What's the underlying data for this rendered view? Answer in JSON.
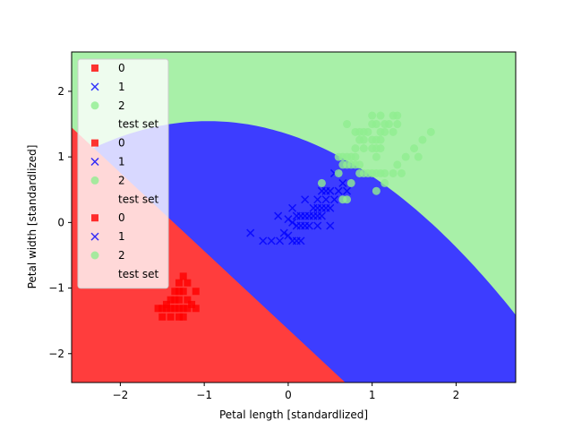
{
  "chart_data": {
    "type": "scatter",
    "title": "",
    "xlabel": "Petal length [standardlized]",
    "ylabel": "Petal width [standardlized]",
    "xlim": [
      -2.58,
      2.71
    ],
    "ylim": [
      -2.44,
      2.6
    ],
    "x_ticks": [
      -2,
      -1,
      0,
      1,
      2
    ],
    "y_ticks": [
      -2,
      -1,
      0,
      1,
      2
    ],
    "grid": false,
    "legend_placement": "upper-left",
    "legend_entries": [
      {
        "label": "0",
        "marker": "square",
        "color": "#ff0000"
      },
      {
        "label": "1",
        "marker": "x",
        "color": "#0000ff"
      },
      {
        "label": "2",
        "marker": "circle",
        "color": "#90ee90"
      },
      {
        "label": "test set",
        "marker": "none",
        "color": ""
      },
      {
        "label": "0",
        "marker": "square",
        "color": "#ff0000"
      },
      {
        "label": "1",
        "marker": "x",
        "color": "#0000ff"
      },
      {
        "label": "2",
        "marker": "circle",
        "color": "#90ee90"
      },
      {
        "label": "test set",
        "marker": "none",
        "color": ""
      },
      {
        "label": "0",
        "marker": "square",
        "color": "#ff0000"
      },
      {
        "label": "1",
        "marker": "x",
        "color": "#0000ff"
      },
      {
        "label": "2",
        "marker": "circle",
        "color": "#90ee90"
      },
      {
        "label": "test set",
        "marker": "none",
        "color": ""
      }
    ],
    "decision_regions": [
      {
        "class": "0",
        "color": "#ff3d3d"
      },
      {
        "class": "1",
        "color": "#3d3dff"
      },
      {
        "class": "2",
        "color": "#a8f0a8"
      }
    ],
    "series": [
      {
        "name": "0",
        "marker": "square",
        "color": "#ff0000",
        "points": [
          [
            -1.55,
            -1.31
          ],
          [
            -1.5,
            -1.31
          ],
          [
            -1.45,
            -1.31
          ],
          [
            -1.4,
            -1.31
          ],
          [
            -1.35,
            -1.31
          ],
          [
            -1.3,
            -1.31
          ],
          [
            -1.25,
            -1.31
          ],
          [
            -1.2,
            -1.31
          ],
          [
            -1.1,
            -1.31
          ],
          [
            -1.5,
            -1.44
          ],
          [
            -1.4,
            -1.44
          ],
          [
            -1.3,
            -1.44
          ],
          [
            -1.25,
            -1.44
          ],
          [
            -1.4,
            -1.18
          ],
          [
            -1.35,
            -1.18
          ],
          [
            -1.3,
            -1.18
          ],
          [
            -1.2,
            -1.18
          ],
          [
            -1.35,
            -1.05
          ],
          [
            -1.3,
            -1.05
          ],
          [
            -1.25,
            -1.05
          ],
          [
            -1.1,
            -1.05
          ],
          [
            -1.3,
            -0.92
          ],
          [
            -1.2,
            -0.92
          ],
          [
            -1.25,
            -0.82
          ],
          [
            -1.45,
            -1.25
          ],
          [
            -1.15,
            -1.25
          ]
        ]
      },
      {
        "name": "1",
        "marker": "x",
        "color": "#0000ff",
        "points": [
          [
            -0.45,
            -0.16
          ],
          [
            -0.3,
            -0.28
          ],
          [
            -0.2,
            -0.28
          ],
          [
            -0.1,
            -0.28
          ],
          [
            -0.12,
            0.1
          ],
          [
            -0.05,
            -0.16
          ],
          [
            0.0,
            -0.2
          ],
          [
            0.05,
            -0.28
          ],
          [
            0.1,
            -0.28
          ],
          [
            0.15,
            -0.28
          ],
          [
            0.0,
            0.05
          ],
          [
            0.05,
            0.0
          ],
          [
            0.1,
            -0.05
          ],
          [
            0.15,
            -0.05
          ],
          [
            0.2,
            -0.05
          ],
          [
            0.25,
            -0.05
          ],
          [
            0.35,
            -0.05
          ],
          [
            0.5,
            -0.05
          ],
          [
            0.05,
            0.22
          ],
          [
            0.1,
            0.1
          ],
          [
            0.15,
            0.1
          ],
          [
            0.2,
            0.1
          ],
          [
            0.25,
            0.1
          ],
          [
            0.3,
            0.1
          ],
          [
            0.35,
            0.1
          ],
          [
            0.4,
            0.1
          ],
          [
            0.2,
            0.35
          ],
          [
            0.3,
            0.22
          ],
          [
            0.35,
            0.22
          ],
          [
            0.4,
            0.22
          ],
          [
            0.45,
            0.22
          ],
          [
            0.5,
            0.22
          ],
          [
            0.35,
            0.35
          ],
          [
            0.45,
            0.35
          ],
          [
            0.55,
            0.35
          ],
          [
            0.4,
            0.48
          ],
          [
            0.45,
            0.48
          ],
          [
            0.5,
            0.48
          ],
          [
            0.6,
            0.48
          ],
          [
            0.7,
            0.48
          ],
          [
            0.65,
            0.6
          ],
          [
            0.55,
            0.75
          ]
        ]
      },
      {
        "name": "2",
        "marker": "circle",
        "color": "#90ee90",
        "points": [
          [
            0.4,
            0.6
          ],
          [
            0.65,
            0.35
          ],
          [
            0.7,
            0.35
          ],
          [
            0.6,
            0.75
          ],
          [
            0.65,
            0.88
          ],
          [
            0.7,
            0.88
          ],
          [
            0.75,
            0.88
          ],
          [
            0.8,
            0.88
          ],
          [
            0.85,
            0.88
          ],
          [
            0.6,
            1.0
          ],
          [
            0.65,
            1.0
          ],
          [
            0.7,
            1.0
          ],
          [
            0.75,
            1.0
          ],
          [
            0.8,
            1.0
          ],
          [
            0.85,
            0.75
          ],
          [
            0.9,
            0.75
          ],
          [
            0.95,
            0.75
          ],
          [
            1.0,
            0.75
          ],
          [
            1.05,
            0.75
          ],
          [
            1.1,
            0.75
          ],
          [
            1.15,
            0.75
          ],
          [
            1.25,
            0.75
          ],
          [
            1.35,
            0.75
          ],
          [
            1.05,
            0.48
          ],
          [
            1.15,
            0.6
          ],
          [
            1.3,
            0.88
          ],
          [
            1.4,
            1.0
          ],
          [
            1.55,
            1.0
          ],
          [
            0.8,
            1.13
          ],
          [
            0.9,
            1.13
          ],
          [
            1.0,
            1.13
          ],
          [
            1.05,
            1.13
          ],
          [
            1.1,
            1.13
          ],
          [
            0.85,
            1.26
          ],
          [
            0.9,
            1.26
          ],
          [
            1.0,
            1.26
          ],
          [
            1.05,
            1.26
          ],
          [
            1.1,
            1.26
          ],
          [
            0.8,
            1.38
          ],
          [
            0.85,
            1.38
          ],
          [
            0.9,
            1.38
          ],
          [
            0.95,
            1.38
          ],
          [
            1.1,
            1.38
          ],
          [
            1.15,
            1.38
          ],
          [
            1.25,
            1.38
          ],
          [
            1.7,
            1.38
          ],
          [
            0.7,
            1.5
          ],
          [
            1.0,
            1.5
          ],
          [
            1.05,
            1.5
          ],
          [
            1.15,
            1.5
          ],
          [
            1.2,
            1.5
          ],
          [
            1.3,
            1.5
          ],
          [
            1.0,
            1.63
          ],
          [
            1.1,
            1.63
          ],
          [
            1.25,
            1.63
          ],
          [
            1.3,
            1.63
          ],
          [
            1.5,
            1.13
          ],
          [
            1.6,
            1.26
          ],
          [
            1.05,
            1.0
          ],
          [
            0.75,
            0.6
          ]
        ]
      }
    ]
  }
}
